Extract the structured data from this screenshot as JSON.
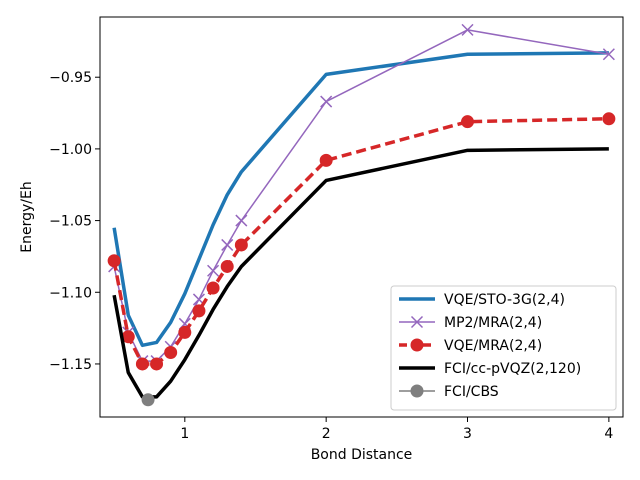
{
  "chart_data": {
    "type": "line",
    "xlabel": "Bond Distance",
    "ylabel": "Energy/Eh",
    "xlim": [
      0.4,
      4.1
    ],
    "ylim": [
      -1.187,
      -0.908
    ],
    "xticks": [
      1,
      2,
      3,
      4
    ],
    "yticks": [
      -1.15,
      -1.1,
      -1.05,
      -1.0,
      -0.95
    ],
    "ytick_labels": [
      "−1.15",
      "−1.10",
      "−1.05",
      "−1.00",
      "−0.95"
    ],
    "xtick_labels": [
      "1",
      "2",
      "3",
      "4"
    ],
    "grid": false,
    "legend_position": "bottom-right",
    "series": [
      {
        "name": "VQE/STO-3G(2,4)",
        "color": "#1f77b4",
        "style": "solid-thick",
        "marker": "none",
        "x": [
          0.5,
          0.6,
          0.7,
          0.8,
          0.9,
          1.0,
          1.1,
          1.2,
          1.3,
          1.4,
          2.0,
          3.0,
          4.0
        ],
        "y": [
          -1.055,
          -1.116,
          -1.137,
          -1.135,
          -1.121,
          -1.101,
          -1.077,
          -1.053,
          -1.032,
          -1.016,
          -0.948,
          -0.934,
          -0.933
        ]
      },
      {
        "name": "MP2/MRA(2,4)",
        "color": "#9467bd",
        "style": "solid-thin",
        "marker": "x",
        "x": [
          0.5,
          0.6,
          0.7,
          0.8,
          0.9,
          1.0,
          1.1,
          1.2,
          1.3,
          1.4,
          2.0,
          3.0,
          4.0
        ],
        "y": [
          -1.082,
          -1.128,
          -1.148,
          -1.148,
          -1.138,
          -1.122,
          -1.105,
          -1.085,
          -1.067,
          -1.05,
          -0.967,
          -0.917,
          -0.934
        ]
      },
      {
        "name": "VQE/MRA(2,4)",
        "color": "#d62728",
        "style": "dashed-thick",
        "marker": "o",
        "x": [
          0.5,
          0.6,
          0.7,
          0.8,
          0.9,
          1.0,
          1.1,
          1.2,
          1.3,
          1.4,
          2.0,
          3.0,
          4.0
        ],
        "y": [
          -1.078,
          -1.131,
          -1.15,
          -1.15,
          -1.142,
          -1.128,
          -1.113,
          -1.097,
          -1.082,
          -1.067,
          -1.008,
          -0.981,
          -0.979
        ]
      },
      {
        "name": "FCI/cc-pVQZ(2,120)",
        "color": "#000000",
        "style": "solid-thick",
        "marker": "none",
        "x": [
          0.5,
          0.6,
          0.7,
          0.8,
          0.9,
          1.0,
          1.1,
          1.2,
          1.3,
          1.4,
          2.0,
          3.0,
          4.0
        ],
        "y": [
          -1.102,
          -1.156,
          -1.173,
          -1.173,
          -1.162,
          -1.147,
          -1.13,
          -1.112,
          -1.096,
          -1.082,
          -1.022,
          -1.001,
          -1.0
        ]
      },
      {
        "name": "FCI/CBS",
        "color": "#7f7f7f",
        "style": "solid-thin",
        "marker": "o",
        "x": [
          0.74
        ],
        "y": [
          -1.175
        ]
      }
    ]
  }
}
